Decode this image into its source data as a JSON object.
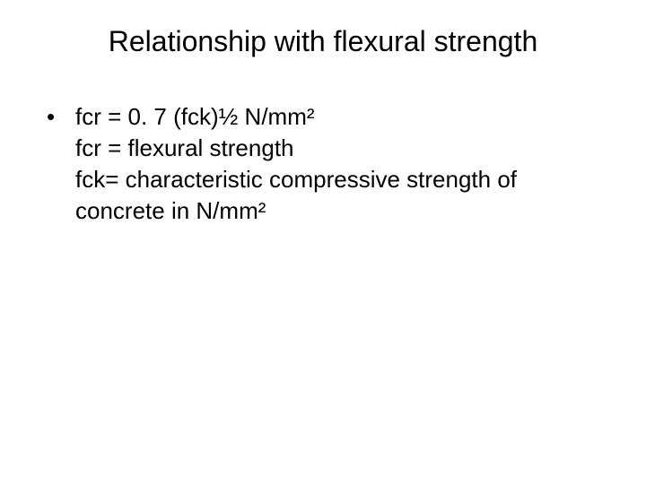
{
  "slide": {
    "title": "Relationship with flexural strength",
    "bullet_marker": "•",
    "line1": "fcr = 0. 7 (fck)½ N/mm²",
    "line2": "fcr = flexural strength",
    "line3": "fck= characteristic compressive strength of concrete in N/mm²"
  },
  "style": {
    "title_fontsize": 32,
    "body_fontsize": 26,
    "text_color": "#000000",
    "background_color": "#ffffff",
    "font_family": "Arial, Helvetica, sans-serif"
  }
}
